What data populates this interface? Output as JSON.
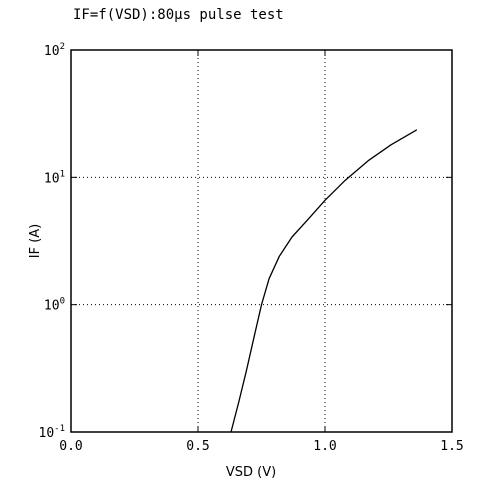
{
  "chart_data": {
    "type": "line",
    "title": "IF=f(VSD):80μs pulse test",
    "xlabel": "VSD (V)",
    "ylabel": "IF (A)",
    "x_scale": "linear",
    "y_scale": "log",
    "xlim": [
      0.0,
      1.5
    ],
    "ylim": [
      0.1,
      100
    ],
    "x_ticks": [
      0.0,
      0.5,
      1.0,
      1.5
    ],
    "x_tick_labels": [
      "0.0",
      "0.5",
      "1.0",
      "1.5"
    ],
    "y_ticks": [
      0.1,
      1,
      10,
      100
    ],
    "y_tick_labels": [
      {
        "base": "10",
        "exp": "-1"
      },
      {
        "base": "10",
        "exp": "0"
      },
      {
        "base": "10",
        "exp": "1"
      },
      {
        "base": "10",
        "exp": "2"
      }
    ],
    "grid": true,
    "grid_style": "dotted",
    "series": [
      {
        "color": "#000000",
        "x": [
          0.63,
          0.66,
          0.69,
          0.72,
          0.75,
          0.78,
          0.82,
          0.87,
          0.93,
          1.0,
          1.08,
          1.17,
          1.26,
          1.36
        ],
        "y": [
          0.1,
          0.17,
          0.3,
          0.55,
          1.0,
          1.6,
          2.4,
          3.4,
          4.6,
          6.6,
          9.5,
          13.5,
          18.0,
          23.5
        ]
      }
    ]
  }
}
